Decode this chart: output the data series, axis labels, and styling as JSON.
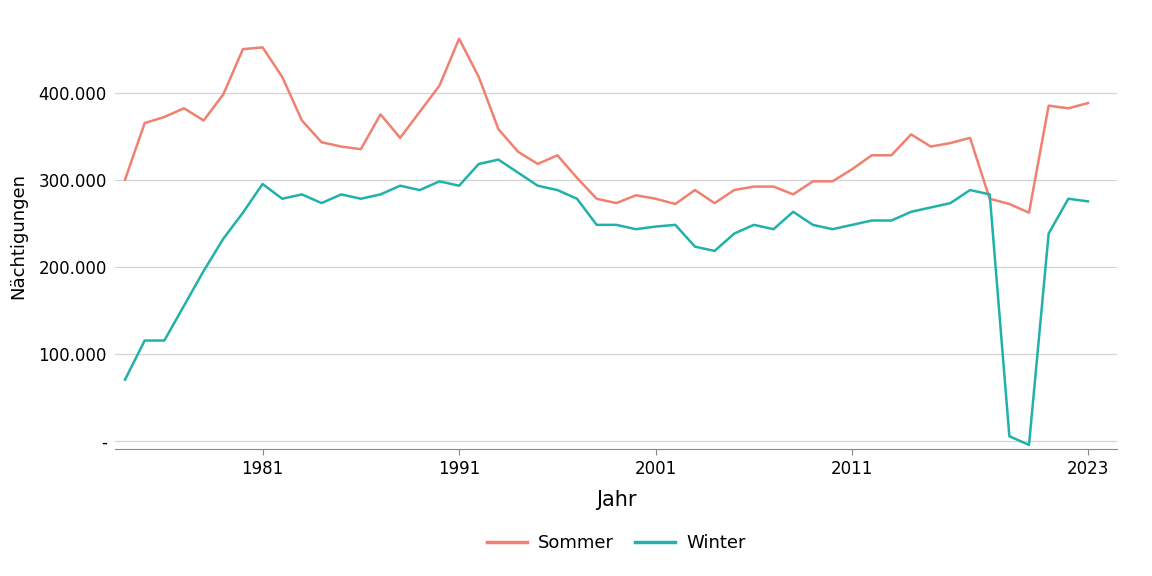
{
  "title": "",
  "xlabel": "Jahr",
  "ylabel": "Nächtigungen",
  "sommer_color": "#F08070",
  "winter_color": "#20B2AA",
  "background_color": "#FFFFFF",
  "panel_background": "#FFFFFF",
  "grid_color": "#D3D3D3",
  "years": [
    1974,
    1975,
    1976,
    1977,
    1978,
    1979,
    1980,
    1981,
    1982,
    1983,
    1984,
    1985,
    1986,
    1987,
    1988,
    1989,
    1990,
    1991,
    1992,
    1993,
    1994,
    1995,
    1996,
    1997,
    1998,
    1999,
    2000,
    2001,
    2002,
    2003,
    2004,
    2005,
    2006,
    2007,
    2008,
    2009,
    2010,
    2011,
    2012,
    2013,
    2014,
    2015,
    2016,
    2017,
    2018,
    2019,
    2020,
    2021,
    2022,
    2023
  ],
  "sommer": [
    300000,
    365000,
    372000,
    382000,
    368000,
    398000,
    450000,
    452000,
    418000,
    368000,
    343000,
    338000,
    335000,
    375000,
    348000,
    378000,
    408000,
    462000,
    418000,
    358000,
    332000,
    318000,
    328000,
    302000,
    278000,
    273000,
    282000,
    278000,
    272000,
    288000,
    273000,
    288000,
    292000,
    292000,
    283000,
    298000,
    298000,
    312000,
    328000,
    328000,
    352000,
    338000,
    342000,
    348000,
    278000,
    272000,
    262000,
    385000,
    382000,
    388000
  ],
  "winter": [
    70000,
    115000,
    115000,
    155000,
    195000,
    232000,
    262000,
    295000,
    278000,
    283000,
    273000,
    283000,
    278000,
    283000,
    293000,
    288000,
    298000,
    293000,
    318000,
    323000,
    308000,
    293000,
    288000,
    278000,
    248000,
    248000,
    243000,
    246000,
    248000,
    223000,
    218000,
    238000,
    248000,
    243000,
    263000,
    248000,
    243000,
    248000,
    253000,
    253000,
    263000,
    268000,
    273000,
    288000,
    283000,
    5000,
    -5000,
    238000,
    278000,
    275000
  ],
  "ylim": [
    -10000,
    480000
  ],
  "yticks": [
    0,
    100000,
    200000,
    300000,
    400000
  ],
  "ytick_labels": [
    "-",
    "100.000",
    "200.000",
    "300.000",
    "400.000"
  ],
  "xticks": [
    1981,
    1991,
    2001,
    2011,
    2023
  ],
  "xlim": [
    1973.5,
    2024.5
  ],
  "linewidth": 1.8,
  "legend_labels": [
    "Sommer",
    "Winter"
  ],
  "font_size": 12,
  "xlabel_fontsize": 15,
  "ylabel_fontsize": 13
}
